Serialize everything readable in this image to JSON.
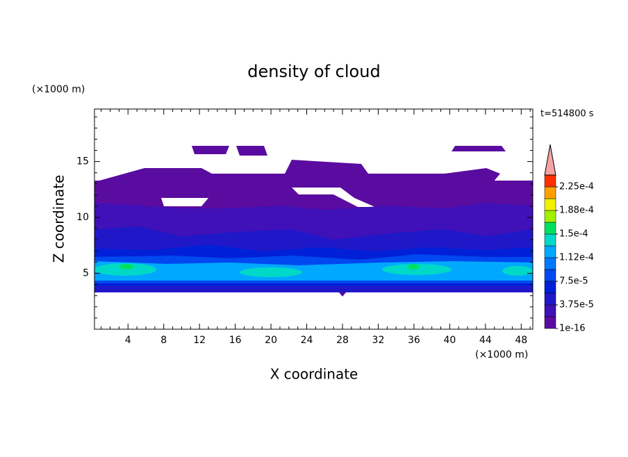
{
  "chart_data": {
    "type": "contour",
    "title": "density of cloud",
    "x_label": "X coordinate",
    "y_label": "Z coordinate",
    "x_unit": "(×1000 m)",
    "y_unit": "(×1000 m)",
    "time_label": "t=514800 s",
    "xlim": [
      0.25,
      49.3
    ],
    "xticks": [
      4,
      8,
      12,
      16,
      20,
      24,
      28,
      32,
      36,
      40,
      44,
      48
    ],
    "ylim": [
      0,
      19.7
    ],
    "yticks": [
      5,
      10,
      15
    ],
    "colorbar": {
      "clim": [
        0,
        0.00024375
      ],
      "ticks": [
        {
          "value": 1e-16,
          "label": "1e-16"
        },
        {
          "value": 3.75e-05,
          "label": "3.75e-5"
        },
        {
          "value": 7.5e-05,
          "label": "7.5e-5"
        },
        {
          "value": 0.0001125,
          "label": "1.12e-4"
        },
        {
          "value": 0.00015,
          "label": "1.5e-4"
        },
        {
          "value": 0.0001875,
          "label": "1.88e-4"
        },
        {
          "value": 0.000225,
          "label": "2.25e-4"
        }
      ],
      "colors": [
        "#5a0ca0",
        "#4010b8",
        "#2018c8",
        "#0020d8",
        "#0048f0",
        "#0078ff",
        "#00a8ff",
        "#00d8c8",
        "#00e060",
        "#a0f000",
        "#f0f000",
        "#ffa000",
        "#ff3000"
      ],
      "extend_color": "#f4a4a4"
    }
  }
}
